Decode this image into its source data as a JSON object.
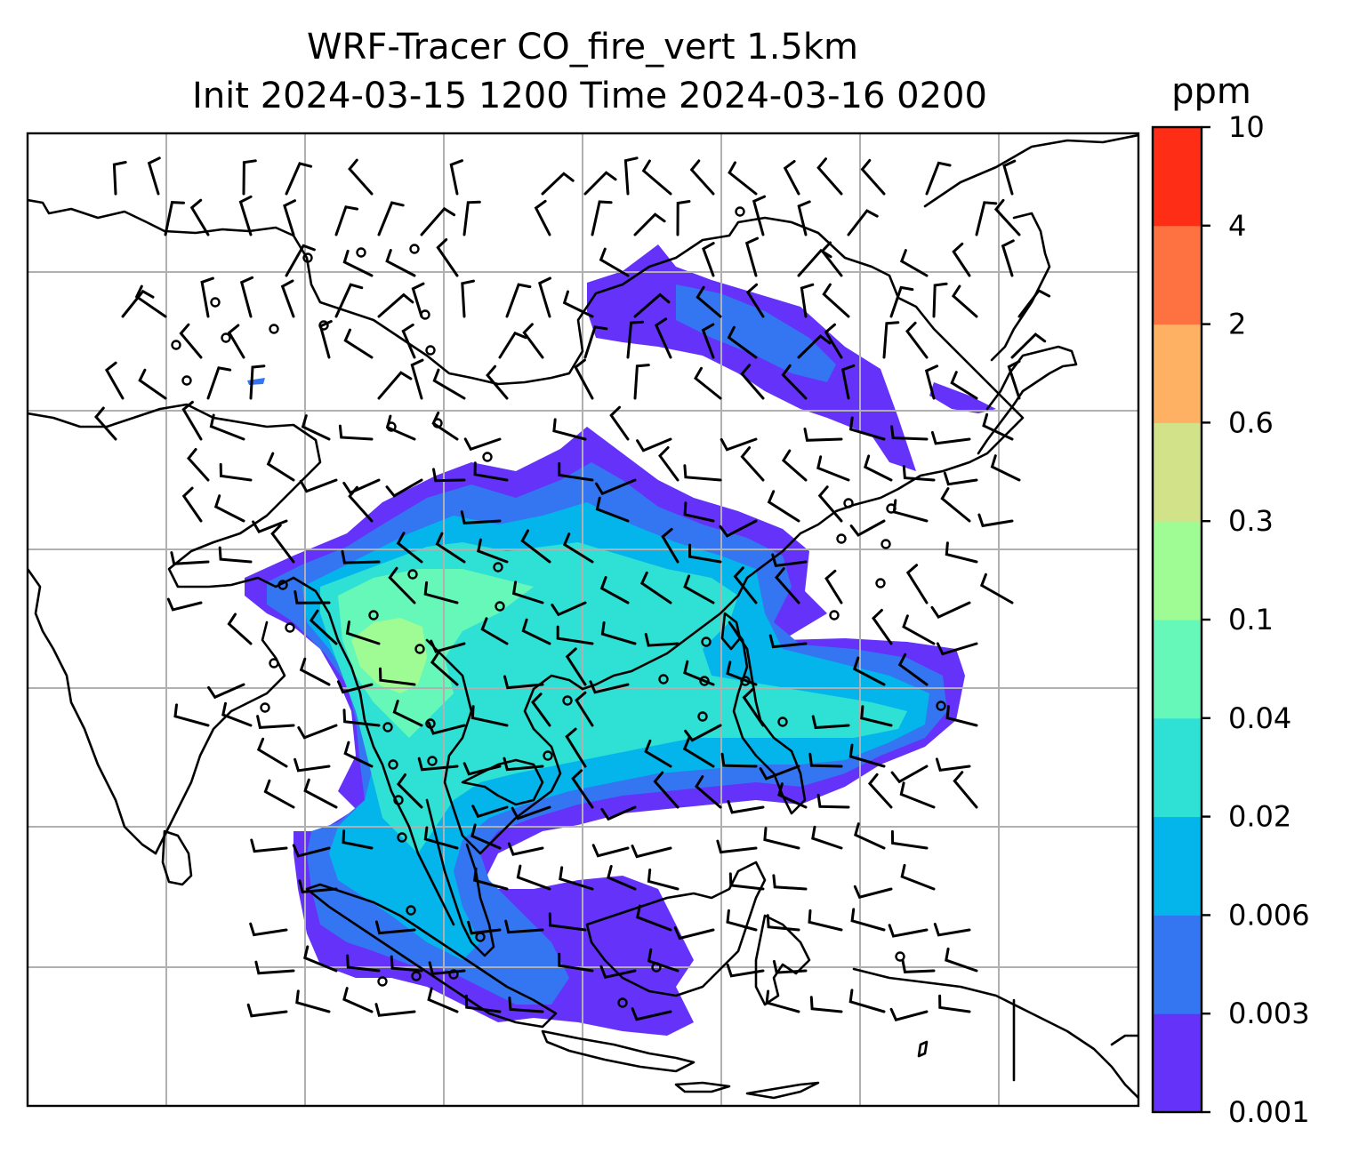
{
  "title": {
    "line1": "WRF-Tracer CO_fire_vert 1.5km",
    "line2": "Init 2024-03-15 1200 Time 2024-03-16 0200"
  },
  "colorbar": {
    "unit": "ppm",
    "levels": [
      "0.001",
      "0.003",
      "0.006",
      "0.02",
      "0.04",
      "0.1",
      "0.3",
      "0.6",
      "2",
      "4",
      "10"
    ],
    "colors": [
      "#6432f8",
      "#3475f2",
      "#03b5ea",
      "#2fe0d4",
      "#66f8b8",
      "#9ffb94",
      "#d2e289",
      "#feb163",
      "#fe7140",
      "#fd2d16"
    ]
  },
  "map": {
    "background": "#ffffff",
    "gridlines": true,
    "overlays": [
      "coastlines",
      "borders",
      "wind-barbs",
      "calm-circles",
      "tracer-fill"
    ]
  }
}
